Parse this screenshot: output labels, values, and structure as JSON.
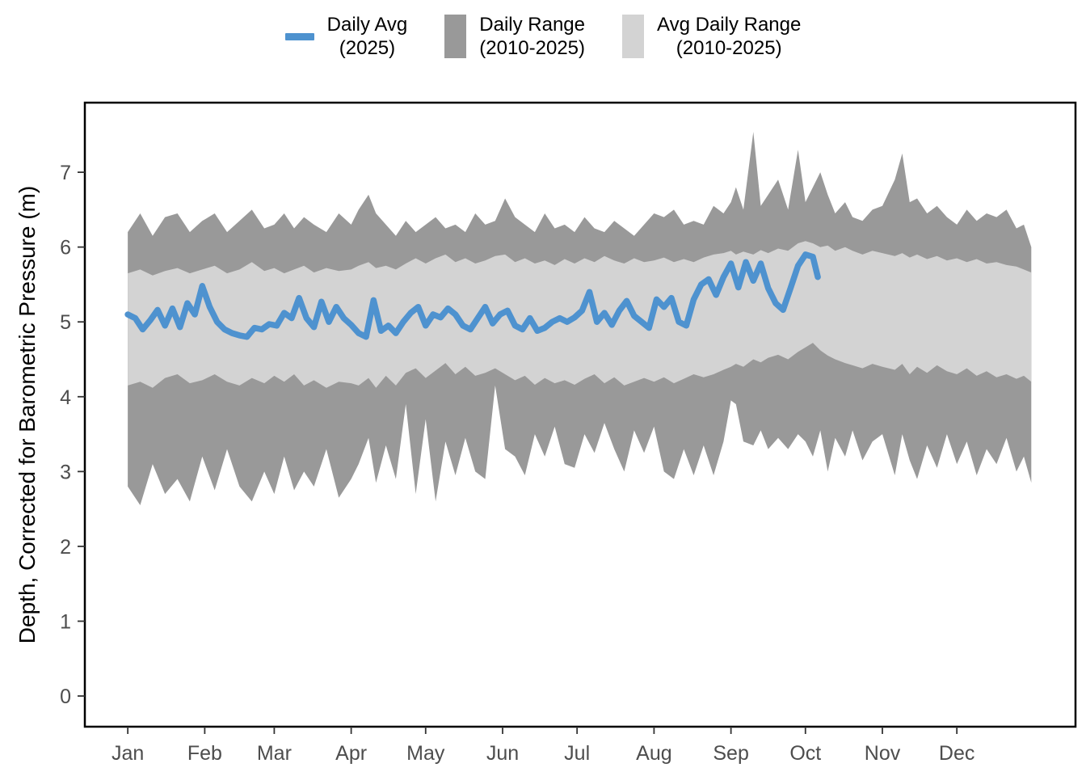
{
  "legend": {
    "items": [
      {
        "id": "daily-avg",
        "swatch": "line",
        "color": "#4e92cf",
        "line1": "Daily Avg",
        "line2": "(2025)"
      },
      {
        "id": "daily-range",
        "swatch": "rect",
        "color": "#999999",
        "line1": "Daily Range",
        "line2": "(2010-2025)"
      },
      {
        "id": "avg-daily-range",
        "swatch": "rect",
        "color": "#d3d3d3",
        "line1": "Avg Daily Range",
        "line2": "(2010-2025)"
      }
    ]
  },
  "axes": {
    "y_title": "Depth, Corrected for Barometric Pressure (m)",
    "tick_color": "#4d4d4d",
    "axis_color": "#000000"
  },
  "chart_data": {
    "type": "line",
    "title": "",
    "xlabel": "",
    "ylabel": "Depth, Corrected for Barometric Pressure (m)",
    "x_unit": "day_of_year",
    "ylim": [
      -0.4,
      7.9
    ],
    "grid": "off",
    "legend_position": "top",
    "x_ticks": {
      "days": [
        0,
        31,
        59,
        90,
        120,
        151,
        181,
        212,
        243,
        273,
        304,
        334
      ],
      "labels": [
        "Jan",
        "Feb",
        "Mar",
        "Apr",
        "May",
        "Jun",
        "Jul",
        "Aug",
        "Sep",
        "Oct",
        "Nov",
        "Dec"
      ]
    },
    "y_ticks": [
      0,
      1,
      2,
      3,
      4,
      5,
      6,
      7
    ],
    "band_days": [
      0,
      5,
      10,
      15,
      20,
      25,
      30,
      35,
      40,
      45,
      50,
      55,
      59,
      63,
      67,
      71,
      75,
      80,
      85,
      90,
      93,
      97,
      100,
      104,
      108,
      112,
      116,
      120,
      124,
      128,
      132,
      136,
      140,
      144,
      148,
      152,
      156,
      160,
      164,
      168,
      172,
      176,
      180,
      184,
      188,
      192,
      196,
      200,
      204,
      208,
      212,
      216,
      220,
      224,
      228,
      232,
      236,
      240,
      243,
      245,
      248,
      252,
      255,
      258,
      262,
      266,
      270,
      273,
      276,
      279,
      282,
      285,
      289,
      292,
      296,
      300,
      304,
      309,
      312,
      315,
      318,
      322,
      326,
      330,
      334,
      338,
      342,
      346,
      350,
      354,
      358,
      361,
      364
    ],
    "series": [
      {
        "name": "Daily Range (2010-2025)",
        "kind": "band",
        "color": "#999999",
        "hi": [
          6.2,
          6.45,
          6.15,
          6.4,
          6.45,
          6.2,
          6.35,
          6.45,
          6.2,
          6.35,
          6.5,
          6.25,
          6.3,
          6.45,
          6.25,
          6.4,
          6.3,
          6.2,
          6.45,
          6.3,
          6.5,
          6.7,
          6.45,
          6.3,
          6.15,
          6.35,
          6.2,
          6.3,
          6.4,
          6.25,
          6.3,
          6.2,
          6.45,
          6.3,
          6.35,
          6.65,
          6.4,
          6.3,
          6.2,
          6.45,
          6.25,
          6.3,
          6.2,
          6.4,
          6.25,
          6.2,
          6.35,
          6.25,
          6.15,
          6.3,
          6.45,
          6.4,
          6.5,
          6.3,
          6.35,
          6.3,
          6.55,
          6.45,
          6.6,
          6.8,
          6.5,
          7.54,
          6.55,
          6.7,
          6.9,
          6.5,
          7.3,
          6.6,
          6.8,
          7.0,
          6.7,
          6.45,
          6.6,
          6.4,
          6.35,
          6.5,
          6.55,
          6.9,
          7.25,
          6.6,
          6.65,
          6.45,
          6.55,
          6.4,
          6.3,
          6.5,
          6.35,
          6.45,
          6.4,
          6.5,
          6.25,
          6.3,
          6.0
        ],
        "lo": [
          2.8,
          2.55,
          3.1,
          2.7,
          2.9,
          2.6,
          3.2,
          2.75,
          3.3,
          2.8,
          2.6,
          3.0,
          2.7,
          3.2,
          2.75,
          3.0,
          2.8,
          3.3,
          2.65,
          2.9,
          3.1,
          3.45,
          2.85,
          3.35,
          2.9,
          3.9,
          2.7,
          3.7,
          2.6,
          3.4,
          2.95,
          3.45,
          3.0,
          2.9,
          4.15,
          3.3,
          3.2,
          2.95,
          3.5,
          3.2,
          3.6,
          3.1,
          3.05,
          3.5,
          3.25,
          3.65,
          3.3,
          3.0,
          3.55,
          3.25,
          3.6,
          3.0,
          2.9,
          3.3,
          2.95,
          3.35,
          2.95,
          3.4,
          3.95,
          3.9,
          3.4,
          3.35,
          3.55,
          3.3,
          3.45,
          3.3,
          3.5,
          3.4,
          3.2,
          3.55,
          3.0,
          3.45,
          3.2,
          3.55,
          3.15,
          3.4,
          3.5,
          2.95,
          3.5,
          3.15,
          2.9,
          3.35,
          3.05,
          3.5,
          3.1,
          3.4,
          2.95,
          3.3,
          3.1,
          3.45,
          3.0,
          3.2,
          2.85
        ]
      },
      {
        "name": "Avg Daily Range (2010-2025)",
        "kind": "band",
        "color": "#d3d3d3",
        "hi": [
          5.65,
          5.7,
          5.62,
          5.68,
          5.72,
          5.65,
          5.7,
          5.75,
          5.65,
          5.7,
          5.8,
          5.68,
          5.72,
          5.65,
          5.7,
          5.75,
          5.66,
          5.72,
          5.68,
          5.7,
          5.75,
          5.8,
          5.72,
          5.75,
          5.7,
          5.78,
          5.85,
          5.78,
          5.85,
          5.9,
          5.8,
          5.85,
          5.78,
          5.82,
          5.88,
          5.9,
          5.8,
          5.85,
          5.78,
          5.82,
          5.76,
          5.84,
          5.78,
          5.85,
          5.8,
          5.88,
          5.82,
          5.78,
          5.85,
          5.8,
          5.82,
          5.86,
          5.8,
          5.84,
          5.8,
          5.86,
          5.9,
          5.92,
          5.95,
          5.9,
          5.94,
          5.9,
          5.96,
          5.92,
          5.98,
          5.95,
          6.05,
          6.08,
          6.05,
          6.0,
          6.02,
          5.95,
          6.0,
          5.95,
          5.9,
          5.95,
          5.92,
          5.88,
          5.92,
          5.86,
          5.9,
          5.84,
          5.88,
          5.82,
          5.85,
          5.8,
          5.84,
          5.78,
          5.8,
          5.76,
          5.74,
          5.7,
          5.66
        ],
        "lo": [
          4.15,
          4.2,
          4.12,
          4.25,
          4.3,
          4.18,
          4.22,
          4.3,
          4.2,
          4.15,
          4.25,
          4.18,
          4.28,
          4.2,
          4.3,
          4.15,
          4.22,
          4.12,
          4.2,
          4.18,
          4.15,
          4.25,
          4.12,
          4.28,
          4.15,
          4.32,
          4.38,
          4.25,
          4.35,
          4.45,
          4.3,
          4.4,
          4.28,
          4.32,
          4.38,
          4.3,
          4.22,
          4.28,
          4.16,
          4.25,
          4.18,
          4.22,
          4.16,
          4.24,
          4.3,
          4.18,
          4.26,
          4.15,
          4.2,
          4.25,
          4.2,
          4.26,
          4.18,
          4.24,
          4.3,
          4.26,
          4.3,
          4.36,
          4.4,
          4.44,
          4.4,
          4.5,
          4.46,
          4.52,
          4.56,
          4.5,
          4.6,
          4.66,
          4.72,
          4.62,
          4.55,
          4.5,
          4.45,
          4.42,
          4.38,
          4.44,
          4.4,
          4.36,
          4.44,
          4.3,
          4.4,
          4.32,
          4.42,
          4.34,
          4.3,
          4.38,
          4.28,
          4.34,
          4.26,
          4.3,
          4.24,
          4.28,
          4.2
        ]
      },
      {
        "name": "Daily Avg (2025)",
        "kind": "line",
        "color": "#4e92cf",
        "days": [
          0,
          3,
          6,
          9,
          12,
          15,
          18,
          21,
          24,
          27,
          30,
          33,
          36,
          39,
          42,
          45,
          48,
          51,
          54,
          57,
          60,
          63,
          66,
          69,
          72,
          75,
          78,
          81,
          84,
          87,
          90,
          93,
          96,
          99,
          102,
          105,
          108,
          111,
          114,
          117,
          120,
          123,
          126,
          129,
          132,
          135,
          138,
          141,
          144,
          147,
          150,
          153,
          156,
          159,
          162,
          165,
          168,
          171,
          174,
          177,
          180,
          183,
          186,
          189,
          192,
          195,
          198,
          201,
          204,
          207,
          210,
          213,
          216,
          219,
          222,
          225,
          228,
          231,
          234,
          237,
          240,
          243,
          246,
          249,
          252,
          255,
          258,
          261,
          264,
          267,
          270,
          273,
          276,
          278
        ],
        "values": [
          5.1,
          5.05,
          4.9,
          5.02,
          5.16,
          4.95,
          5.18,
          4.93,
          5.25,
          5.1,
          5.48,
          5.2,
          5.0,
          4.9,
          4.85,
          4.82,
          4.8,
          4.92,
          4.9,
          4.97,
          4.95,
          5.12,
          5.05,
          5.32,
          5.05,
          4.93,
          5.27,
          5.0,
          5.2,
          5.05,
          4.96,
          4.85,
          4.8,
          5.29,
          4.88,
          4.95,
          4.85,
          5.0,
          5.12,
          5.2,
          4.95,
          5.1,
          5.06,
          5.18,
          5.1,
          4.95,
          4.9,
          5.05,
          5.2,
          4.98,
          5.1,
          5.15,
          4.95,
          4.9,
          5.05,
          4.88,
          4.92,
          5.0,
          5.05,
          5.0,
          5.06,
          5.15,
          5.4,
          5.0,
          5.12,
          4.96,
          5.15,
          5.28,
          5.08,
          5.0,
          4.92,
          5.3,
          5.2,
          5.32,
          5.0,
          4.95,
          5.3,
          5.5,
          5.57,
          5.36,
          5.6,
          5.78,
          5.46,
          5.8,
          5.55,
          5.78,
          5.45,
          5.25,
          5.16,
          5.45,
          5.75,
          5.9,
          5.87,
          5.6
        ]
      }
    ]
  }
}
